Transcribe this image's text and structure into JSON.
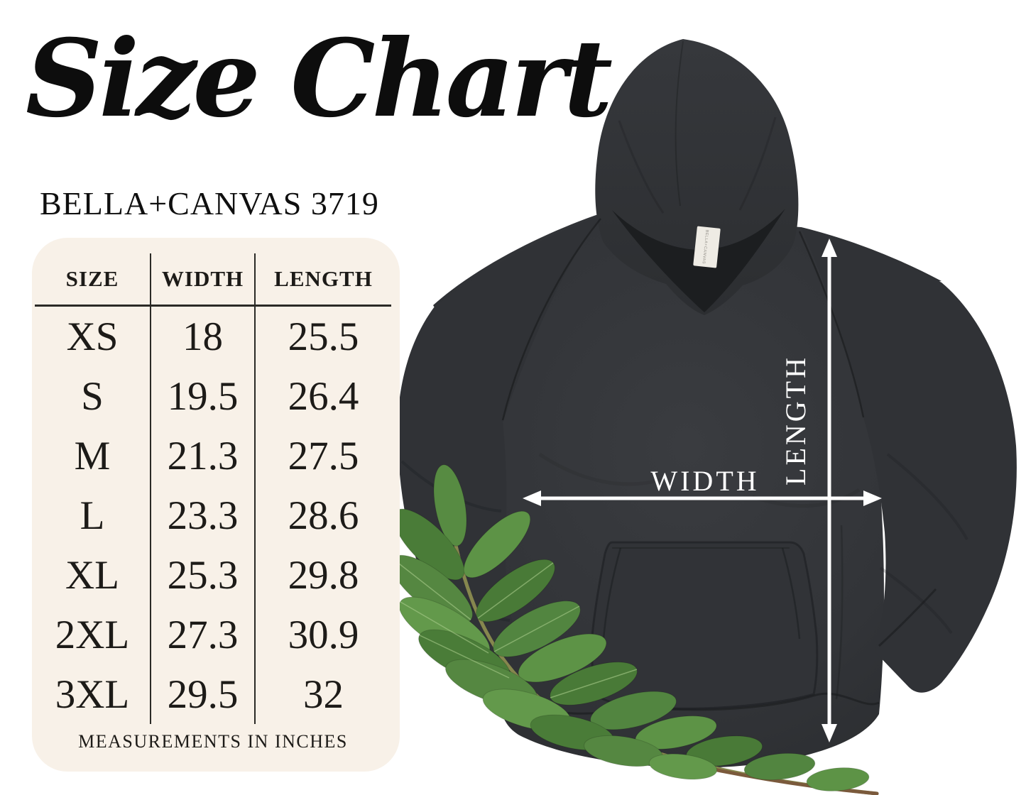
{
  "page": {
    "background": "#ffffff"
  },
  "header": {
    "title": "Size Chart",
    "subtitle": "BELLA+CANVAS 3719"
  },
  "size_table": {
    "card_color": "#f8f1e8",
    "text_color": "#1d1b18",
    "columns": [
      "SIZE",
      "WIDTH",
      "LENGTH"
    ],
    "rows": [
      {
        "size": "XS",
        "width": "18",
        "length": "25.5"
      },
      {
        "size": "S",
        "width": "19.5",
        "length": "26.4"
      },
      {
        "size": "M",
        "width": "21.3",
        "length": "27.5"
      },
      {
        "size": "L",
        "width": "23.3",
        "length": "28.6"
      },
      {
        "size": "XL",
        "width": "25.3",
        "length": "29.8"
      },
      {
        "size": "2XL",
        "width": "27.3",
        "length": "30.9"
      },
      {
        "size": "3XL",
        "width": "29.5",
        "length": "32"
      }
    ],
    "footnote": "MEASUREMENTS IN INCHES"
  },
  "diagram": {
    "garment": "pullover hoodie",
    "width_label": "WIDTH",
    "length_label": "LENGTH",
    "tag_label": "BELLA+CANVAS",
    "arrow_color": "#ffffff",
    "hoodie_color": "#323438",
    "leaf_color": "#578b42"
  },
  "chart_data": {
    "type": "table",
    "title": "Size Chart",
    "subtitle": "BELLA+CANVAS 3719",
    "columns": [
      "SIZE",
      "WIDTH",
      "LENGTH"
    ],
    "rows": [
      [
        "XS",
        18,
        25.5
      ],
      [
        "S",
        19.5,
        26.4
      ],
      [
        "M",
        21.3,
        27.5
      ],
      [
        "L",
        23.3,
        28.6
      ],
      [
        "XL",
        25.3,
        29.8
      ],
      [
        "2XL",
        27.3,
        30.9
      ],
      [
        "3XL",
        29.5,
        32
      ]
    ],
    "footnote": "MEASUREMENTS IN INCHES",
    "units": "inches"
  }
}
